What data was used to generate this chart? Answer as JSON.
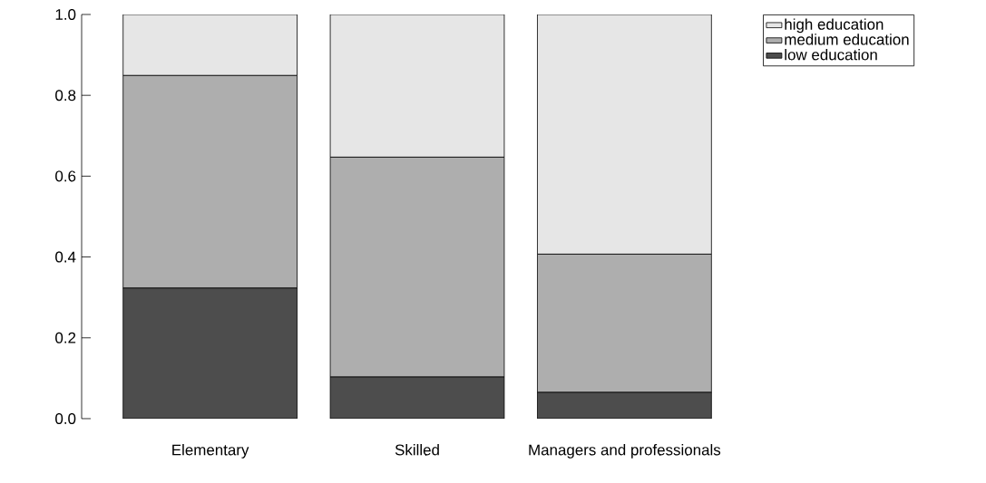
{
  "chart_data": {
    "type": "bar",
    "stacked": true,
    "categories": [
      "Elementary",
      "Skilled",
      "Managers and professionals"
    ],
    "series": [
      {
        "name": "low education",
        "color": "#4d4d4d",
        "values": [
          0.323,
          0.103,
          0.065
        ]
      },
      {
        "name": "medium education",
        "color": "#aeaeae",
        "values": [
          0.526,
          0.544,
          0.342
        ]
      },
      {
        "name": "high education",
        "color": "#e6e6e6",
        "values": [
          0.151,
          0.353,
          0.593
        ]
      }
    ],
    "ylim": [
      0,
      1
    ],
    "yticks": [
      {
        "value": 0,
        "label": "0.0"
      },
      {
        "value": 0.2,
        "label": "0.2"
      },
      {
        "value": 0.4,
        "label": "0.4"
      },
      {
        "value": 0.6,
        "label": "0.6"
      },
      {
        "value": 0.8,
        "label": "0.8"
      },
      {
        "value": 1,
        "label": "1.0"
      }
    ],
    "grid": false,
    "legend": "top right"
  }
}
